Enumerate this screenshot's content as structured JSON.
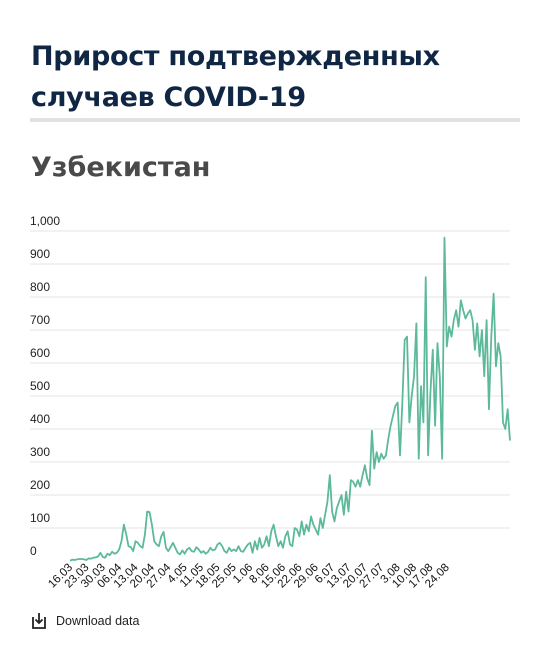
{
  "header": {
    "title": "Прирост подтвержденных случаев COVID-19",
    "subtitle": "Узбекистан"
  },
  "download": {
    "label": "Download data",
    "icon": "download-icon"
  },
  "colors": {
    "line": "#5cb99a",
    "title": "#0f2744",
    "subtitle": "#4a4a4a",
    "grid": "#e6e6e6"
  },
  "chart_data": {
    "type": "line",
    "title": "Прирост подтвержденных случаев COVID-19",
    "subtitle": "Узбекистан",
    "ylim": [
      0,
      1000
    ],
    "yticks": [
      0,
      100,
      200,
      300,
      400,
      500,
      600,
      700,
      800,
      900,
      1000
    ],
    "ytick_labels": [
      "0",
      "100",
      "200",
      "300",
      "400",
      "500",
      "600",
      "700",
      "800",
      "900",
      "1,000"
    ],
    "x_tick_labels": [
      "16.03",
      "23.03",
      "30.03",
      "06.04",
      "13.04",
      "20.04",
      "27.04",
      "4.05",
      "11.05",
      "18.05",
      "25.05",
      "1.06",
      "8.06",
      "15.06",
      "22.06",
      "29.06",
      "6.07",
      "13.07",
      "20.07",
      "27.07",
      "3.08",
      "10.08",
      "17.08",
      "24.08"
    ],
    "x_start": "16.03",
    "grid": true,
    "series": [
      {
        "values": [
          1,
          4,
          3,
          5,
          6,
          6,
          5,
          3,
          8,
          7,
          10,
          11,
          14,
          25,
          12,
          10,
          22,
          18,
          28,
          22,
          25,
          35,
          60,
          110,
          82,
          45,
          42,
          30,
          60,
          55,
          45,
          40,
          80,
          150,
          148,
          110,
          60,
          50,
          45,
          75,
          88,
          40,
          30,
          42,
          55,
          40,
          25,
          20,
          32,
          22,
          35,
          40,
          30,
          28,
          42,
          35,
          25,
          30,
          22,
          28,
          40,
          32,
          35,
          50,
          55,
          45,
          30,
          25,
          40,
          30,
          35,
          30,
          45,
          30,
          28,
          40,
          50,
          55,
          25,
          60,
          35,
          70,
          40,
          50,
          75,
          45,
          90,
          110,
          75,
          45,
          60,
          40,
          75,
          90,
          50,
          45,
          100,
          95,
          75,
          120,
          80,
          110,
          90,
          135,
          110,
          95,
          80,
          130,
          100,
          140,
          180,
          260,
          150,
          120,
          160,
          180,
          200,
          140,
          210,
          150,
          245,
          240,
          225,
          245,
          225,
          260,
          290,
          250,
          230,
          395,
          280,
          330,
          300,
          325,
          310,
          320,
          370,
          410,
          440,
          470,
          480,
          320,
          480,
          670,
          680,
          420,
          500,
          560,
          720,
          310,
          530,
          420,
          860,
          320,
          510,
          640,
          410,
          660,
          560,
          310,
          980,
          650,
          710,
          680,
          730,
          760,
          710,
          790,
          760,
          735,
          750,
          760,
          730,
          640,
          720,
          620,
          700,
          560,
          730,
          460,
          680,
          810,
          590,
          660,
          620,
          420,
          400,
          460,
          365
        ]
      }
    ]
  }
}
